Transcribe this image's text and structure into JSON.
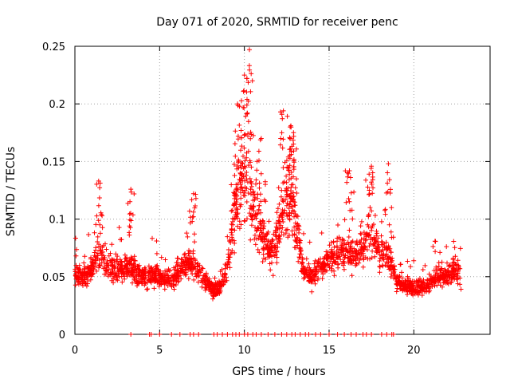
{
  "chart_data": {
    "type": "scatter",
    "title": "Day 071 of 2020, SRMTID for receiver penc",
    "xlabel": "GPS time / hours",
    "ylabel": "SRMTID / TECUs",
    "xlim": [
      0,
      24.5
    ],
    "ylim": [
      0,
      0.25
    ],
    "x_ticks": [
      0,
      5,
      10,
      15,
      20
    ],
    "y_ticks": [
      0,
      0.05,
      0.1,
      0.15,
      0.2,
      0.25
    ],
    "x_tick_labels": [
      "0",
      "5",
      "10",
      "15",
      "20"
    ],
    "y_tick_labels": [
      "0",
      "0.05",
      "0.1",
      "0.15",
      "0.2",
      "0.25"
    ],
    "grid": true,
    "marker": "+",
    "series": [
      {
        "name": "SRMTID",
        "color": "#ff0000",
        "profile": [
          [
            0.0,
            0.052
          ],
          [
            0.5,
            0.05
          ],
          [
            1.0,
            0.055
          ],
          [
            1.4,
            0.072
          ],
          [
            1.8,
            0.06
          ],
          [
            2.5,
            0.055
          ],
          [
            3.0,
            0.058
          ],
          [
            3.5,
            0.055
          ],
          [
            4.0,
            0.05
          ],
          [
            4.5,
            0.052
          ],
          [
            5.0,
            0.05
          ],
          [
            5.5,
            0.048
          ],
          [
            6.0,
            0.052
          ],
          [
            6.5,
            0.06
          ],
          [
            7.0,
            0.062
          ],
          [
            7.5,
            0.05
          ],
          [
            8.0,
            0.04
          ],
          [
            8.5,
            0.04
          ],
          [
            9.0,
            0.055
          ],
          [
            9.4,
            0.11
          ],
          [
            9.8,
            0.13
          ],
          [
            10.3,
            0.13
          ],
          [
            10.7,
            0.1
          ],
          [
            11.2,
            0.08
          ],
          [
            11.7,
            0.07
          ],
          [
            12.2,
            0.1
          ],
          [
            12.7,
            0.12
          ],
          [
            13.1,
            0.09
          ],
          [
            13.5,
            0.055
          ],
          [
            14.0,
            0.05
          ],
          [
            14.5,
            0.06
          ],
          [
            15.0,
            0.065
          ],
          [
            15.5,
            0.07
          ],
          [
            16.0,
            0.068
          ],
          [
            16.5,
            0.07
          ],
          [
            17.0,
            0.075
          ],
          [
            17.4,
            0.09
          ],
          [
            17.8,
            0.075
          ],
          [
            18.3,
            0.07
          ],
          [
            18.7,
            0.06
          ],
          [
            19.0,
            0.045
          ],
          [
            19.5,
            0.042
          ],
          [
            20.0,
            0.04
          ],
          [
            20.5,
            0.042
          ],
          [
            21.0,
            0.045
          ],
          [
            21.5,
            0.05
          ],
          [
            22.0,
            0.052
          ],
          [
            22.5,
            0.055
          ],
          [
            22.8,
            0.05
          ]
        ],
        "peaks": [
          {
            "x": 10.3,
            "y": 0.247
          },
          {
            "x": 10.0,
            "y": 0.225
          },
          {
            "x": 9.6,
            "y": 0.2
          },
          {
            "x": 12.3,
            "y": 0.194
          },
          {
            "x": 12.7,
            "y": 0.18
          },
          {
            "x": 12.9,
            "y": 0.175
          },
          {
            "x": 11.0,
            "y": 0.17
          },
          {
            "x": 17.5,
            "y": 0.146
          },
          {
            "x": 18.5,
            "y": 0.148
          },
          {
            "x": 16.2,
            "y": 0.142
          },
          {
            "x": 1.4,
            "y": 0.133
          },
          {
            "x": 3.3,
            "y": 0.126
          },
          {
            "x": 7.0,
            "y": 0.122
          }
        ],
        "zeros_x": [
          3.3,
          4.4,
          4.5,
          5.0,
          5.7,
          6.2,
          6.8,
          7.0,
          7.3,
          8.2,
          8.4,
          8.7,
          9.0,
          9.3,
          9.5,
          9.7,
          10.0,
          10.2,
          10.5,
          10.7,
          11.0,
          11.4,
          11.8,
          12.2,
          12.5,
          12.8,
          13.0,
          13.3,
          13.6,
          13.8,
          14.2,
          14.5,
          15.0,
          15.5,
          15.9,
          16.3,
          16.6,
          17.0,
          17.2,
          17.5,
          18.1,
          18.4,
          18.7,
          18.8
        ]
      }
    ]
  }
}
